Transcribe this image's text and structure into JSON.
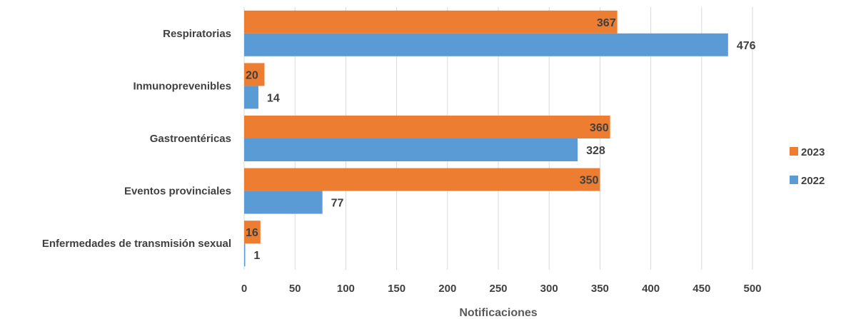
{
  "chart_data": {
    "type": "bar",
    "orientation": "horizontal",
    "categories": [
      "Respiratorias",
      "Inmunoprevenibles",
      "Gastroentéricas",
      "Eventos provinciales",
      "Enfermedades de transmisión sexual"
    ],
    "series": [
      {
        "name": "2023",
        "color": "#ED7D31",
        "values": [
          367,
          20,
          360,
          350,
          16
        ]
      },
      {
        "name": "2022",
        "color": "#5B9BD5",
        "values": [
          476,
          14,
          328,
          77,
          1
        ]
      }
    ],
    "xlabel": "Notificaciones",
    "ylabel": "",
    "xlim": [
      0,
      500
    ],
    "xticks": [
      "0",
      "50",
      "100",
      "150",
      "200",
      "250",
      "300",
      "350",
      "400",
      "450",
      "500"
    ],
    "grid": "vertical",
    "legend_position": "right",
    "legend": [
      "2023",
      "2022"
    ]
  }
}
